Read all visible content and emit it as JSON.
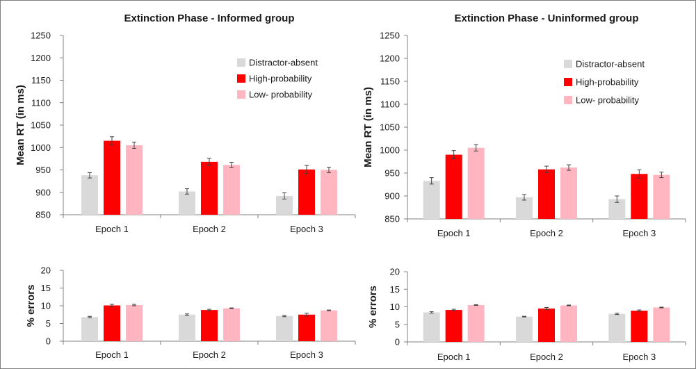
{
  "colors": {
    "distractor_absent": "#d9d9d9",
    "high_probability": "#ff0000",
    "low_probability": "#ffb6c1",
    "axis": "#808080",
    "errorbar": "#404040"
  },
  "chart_data": [
    {
      "type": "bar",
      "title": "Extinction Phase - Informed group",
      "ylabel": "Mean RT (in ms)",
      "xlabel": "",
      "ylim": [
        850,
        1250
      ],
      "yticks": [
        "850",
        "900",
        "950",
        "1000",
        "1050",
        "1100",
        "1150",
        "1200",
        "1250"
      ],
      "categories": [
        "Epoch 1",
        "Epoch 2",
        "Epoch 3"
      ],
      "legend": "top-right",
      "series": [
        {
          "name": "Distractor-absent",
          "values": [
            938,
            902,
            892
          ],
          "errors": [
            6,
            6,
            7
          ]
        },
        {
          "name": "High-probability",
          "values": [
            1015,
            968,
            951
          ],
          "errors": [
            9,
            8,
            9
          ]
        },
        {
          "name": "Low- probability",
          "values": [
            1005,
            961,
            950
          ],
          "errors": [
            7,
            6,
            6
          ]
        }
      ]
    },
    {
      "type": "bar",
      "title": "Extinction Phase - Uninformed group",
      "ylabel": "Mean RT (in ms)",
      "xlabel": "",
      "ylim": [
        850,
        1250
      ],
      "yticks": [
        "850",
        "900",
        "950",
        "1000",
        "1050",
        "1100",
        "1150",
        "1200",
        "1250"
      ],
      "categories": [
        "Epoch 1",
        "Epoch 2",
        "Epoch 3"
      ],
      "legend": "top-right",
      "series": [
        {
          "name": "Distractor-absent",
          "values": [
            933,
            897,
            893
          ],
          "errors": [
            7,
            6,
            7
          ]
        },
        {
          "name": "High-probability",
          "values": [
            990,
            958,
            948
          ],
          "errors": [
            9,
            7,
            9
          ]
        },
        {
          "name": "Low- probability",
          "values": [
            1005,
            962,
            946
          ],
          "errors": [
            7,
            6,
            6
          ]
        }
      ]
    },
    {
      "type": "bar",
      "title": "",
      "ylabel": "% errors",
      "xlabel": "",
      "ylim": [
        0,
        20
      ],
      "yticks": [
        "0",
        "5",
        "10",
        "15",
        "20"
      ],
      "categories": [
        "Epoch 1",
        "Epoch 2",
        "Epoch 3"
      ],
      "series": [
        {
          "values": [
            6.8,
            7.5,
            7.1
          ],
          "errors": [
            0.2,
            0.2,
            0.2
          ]
        },
        {
          "values": [
            10.1,
            8.8,
            7.5
          ],
          "errors": [
            0.3,
            0.2,
            0.4
          ]
        },
        {
          "values": [
            10.2,
            9.3,
            8.7
          ],
          "errors": [
            0.2,
            0.1,
            0.1
          ]
        }
      ]
    },
    {
      "type": "bar",
      "title": "",
      "ylabel": "% errors",
      "xlabel": "",
      "ylim": [
        0,
        20
      ],
      "yticks": [
        "0",
        "5",
        "10",
        "15",
        "20"
      ],
      "categories": [
        "Epoch 1",
        "Epoch 2",
        "Epoch 3"
      ],
      "series": [
        {
          "values": [
            8.4,
            7.2,
            8.0
          ],
          "errors": [
            0.2,
            0.1,
            0.2
          ]
        },
        {
          "values": [
            9.1,
            9.5,
            8.9
          ],
          "errors": [
            0.2,
            0.3,
            0.2
          ]
        },
        {
          "values": [
            10.5,
            10.4,
            9.8
          ],
          "errors": [
            0.1,
            0.1,
            0.1
          ]
        }
      ]
    }
  ]
}
